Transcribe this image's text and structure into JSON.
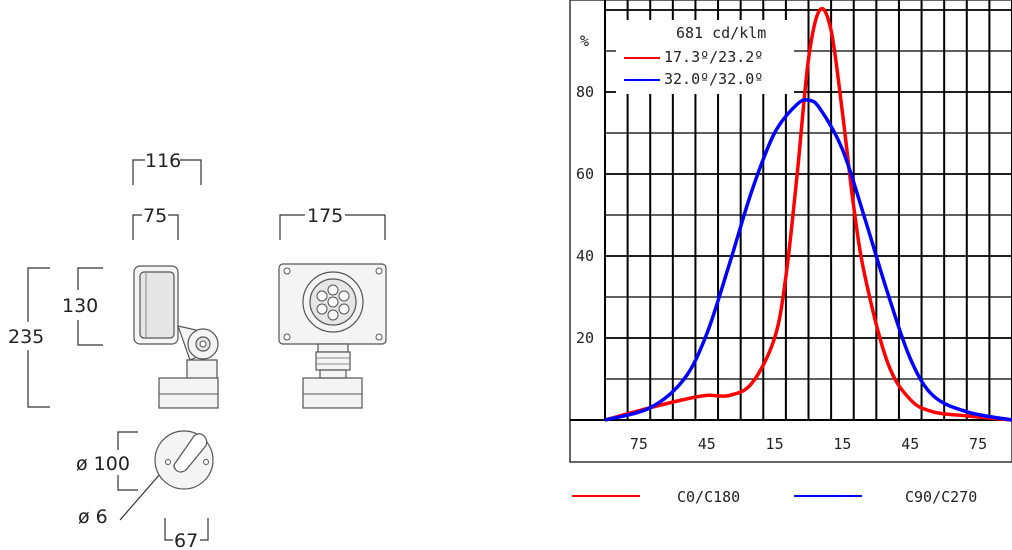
{
  "drawing": {
    "dims": {
      "width_total": "116",
      "width_head": "75",
      "width_front": "175",
      "height_head": "130",
      "height_total": "235",
      "base_diameter": "ø 100",
      "hole_diameter": "ø 6",
      "base_offset": "67"
    }
  },
  "chart_data": {
    "type": "line",
    "ylabel": "%",
    "yticks": [
      "80",
      "60",
      "40",
      "20"
    ],
    "xticks": [
      "75",
      "45",
      "15",
      "15",
      "45",
      "75"
    ],
    "intensity_label": "681 cd/klm",
    "x_domain": [
      -90,
      90
    ],
    "ylim": [
      0,
      100
    ],
    "series": [
      {
        "name": "17.3º/23.2º",
        "legend": "C0/C180",
        "color": "#ff0000",
        "x": [
          -90,
          -70,
          -55,
          -45,
          -35,
          -25,
          -15,
          -10,
          -5,
          0,
          5,
          10,
          15,
          20,
          25,
          35,
          45,
          55,
          70,
          90
        ],
        "y": [
          0,
          3,
          5,
          6,
          6,
          9,
          20,
          35,
          60,
          88,
          100,
          95,
          75,
          52,
          35,
          14,
          5,
          2,
          1,
          0
        ]
      },
      {
        "name": "32.0º/32.0º",
        "legend": "C90/C270",
        "color": "#0000ff",
        "x": [
          -90,
          -70,
          -55,
          -45,
          -35,
          -25,
          -15,
          -5,
          0,
          5,
          15,
          25,
          35,
          45,
          55,
          70,
          90
        ],
        "y": [
          0,
          3,
          10,
          21,
          38,
          56,
          70,
          77,
          78,
          76,
          66,
          49,
          31,
          15,
          6,
          2,
          0
        ]
      }
    ]
  }
}
